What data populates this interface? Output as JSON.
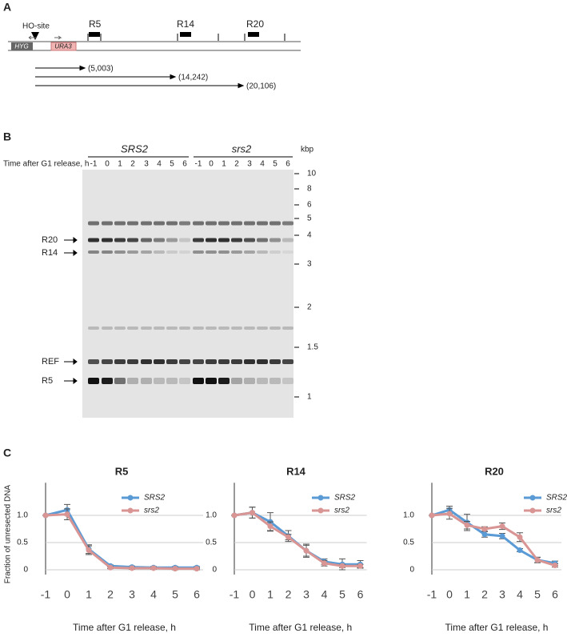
{
  "panel_a": {
    "label": "A",
    "ho_site": "HO-site",
    "regions": [
      "R5",
      "R14",
      "R20"
    ],
    "markers": [
      "HYG",
      "URA3"
    ],
    "fragments": [
      "(5,003)",
      "(14,242)",
      "(20,106)"
    ]
  },
  "panel_b": {
    "label": "B",
    "strains": [
      "SRS2",
      "srs2"
    ],
    "time_label": "Time after G1 release, h",
    "lanes": [
      "-1",
      "0",
      "1",
      "2",
      "3",
      "4",
      "5",
      "6"
    ],
    "size_unit": "kbp",
    "sizes": [
      "10",
      "8",
      "6",
      "5",
      "4",
      "3",
      "2",
      "1.5",
      "1"
    ],
    "bands": [
      "R20",
      "R14",
      "REF",
      "R5"
    ]
  },
  "panel_c": {
    "label": "C"
  },
  "chart_data": [
    {
      "type": "line",
      "title": "R5",
      "y_label": "Fraction of unresected DNA",
      "x_label": "Time after G1 release, h",
      "categories": [
        "-1",
        "0",
        "1",
        "2",
        "3",
        "4",
        "5",
        "6"
      ],
      "ylim": [
        0,
        1.6
      ],
      "yticks": [
        0,
        0.5,
        {
          "value": 1,
          "label": "1.0"
        }
      ],
      "grid": true,
      "legend": "upper right",
      "series": [
        {
          "name": "SRS2",
          "color": "#5b9bd5",
          "values": [
            1.0,
            1.1,
            0.38,
            0.07,
            0.05,
            0.04,
            0.04,
            0.04
          ],
          "errors": [
            0,
            0.1,
            0.08,
            0.02,
            0.02,
            0.02,
            0.02,
            0.02
          ]
        },
        {
          "name": "srs2",
          "color": "#d99594",
          "values": [
            1.0,
            1.02,
            0.36,
            0.04,
            0.03,
            0.03,
            0.02,
            0.02
          ],
          "errors": [
            0,
            0.1,
            0.08,
            0.02,
            0.02,
            0.02,
            0.02,
            0.02
          ]
        }
      ]
    },
    {
      "type": "line",
      "title": "R14",
      "x_label": "Time after G1 release, h",
      "categories": [
        "-1",
        "0",
        "1",
        "2",
        "3",
        "4",
        "5",
        "6"
      ],
      "ylim": [
        0,
        1.6
      ],
      "yticks": [
        0,
        0.5,
        {
          "value": 1,
          "label": "1.0"
        }
      ],
      "grid": true,
      "legend": "upper right",
      "series": [
        {
          "name": "SRS2",
          "color": "#5b9bd5",
          "values": [
            1.0,
            1.05,
            0.88,
            0.62,
            0.35,
            0.15,
            0.1,
            0.1
          ],
          "errors": [
            0,
            0.1,
            0.17,
            0.1,
            0.12,
            0.05,
            0.1,
            0.07
          ]
        },
        {
          "name": "srs2",
          "color": "#d99594",
          "values": [
            1.0,
            1.05,
            0.8,
            0.6,
            0.35,
            0.12,
            0.07,
            0.07
          ],
          "errors": [
            0,
            0.1,
            0.08,
            0.05,
            0.1,
            0.05,
            0.03,
            0.03
          ]
        }
      ]
    },
    {
      "type": "line",
      "title": "R20",
      "x_label": "Time after G1 release, h",
      "categories": [
        "-1",
        "0",
        "1",
        "2",
        "3",
        "4",
        "5",
        "6"
      ],
      "ylim": [
        0,
        1.6
      ],
      "yticks": [
        0,
        0.5,
        {
          "value": 1,
          "label": "1.0"
        }
      ],
      "grid": true,
      "legend": "upper right",
      "series": [
        {
          "name": "SRS2",
          "color": "#5b9bd5",
          "values": [
            1.0,
            1.1,
            0.87,
            0.65,
            0.62,
            0.36,
            0.18,
            0.12
          ],
          "errors": [
            0,
            0.07,
            0.15,
            0.05,
            0.05,
            0.03,
            0.05,
            0.04
          ]
        },
        {
          "name": "srs2",
          "color": "#d99594",
          "values": [
            1.0,
            1.03,
            0.82,
            0.75,
            0.8,
            0.6,
            0.18,
            0.08
          ],
          "errors": [
            0,
            0.1,
            0.07,
            0.04,
            0.06,
            0.08,
            0.05,
            0.03
          ]
        }
      ]
    }
  ]
}
